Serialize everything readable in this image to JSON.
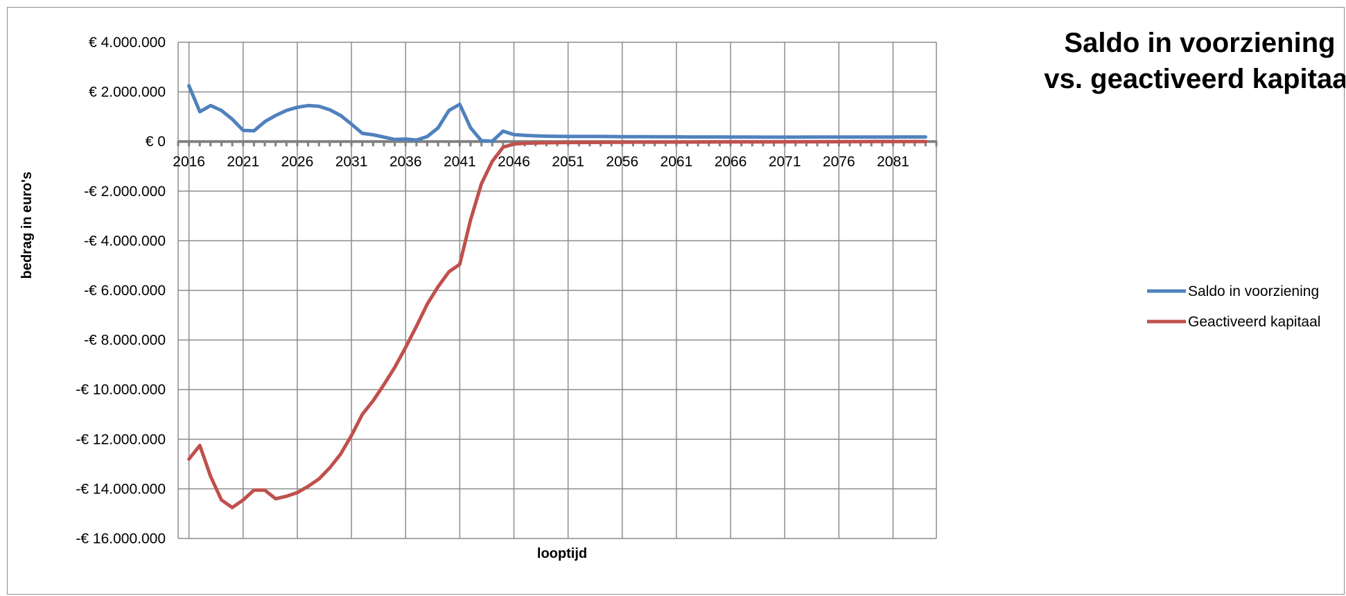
{
  "chart_data": {
    "type": "line",
    "title_lines": [
      "Saldo in voorziening",
      "vs. geactiveerd kapitaal"
    ],
    "xlabel": "looptijd",
    "ylabel": "bedrag in euro's",
    "ylim": [
      -16000000,
      4000000
    ],
    "ytick_values": [
      4000000,
      2000000,
      0,
      -2000000,
      -4000000,
      -6000000,
      -8000000,
      -10000000,
      -12000000,
      -14000000,
      -16000000
    ],
    "ytick_labels": [
      "€ 4.000.000",
      "€ 2.000.000",
      "€ 0",
      "-€ 2.000.000",
      "-€ 4.000.000",
      "-€ 6.000.000",
      "-€ 8.000.000",
      "-€ 10.000.000",
      "-€ 12.000.000",
      "-€ 14.000.000",
      "-€ 16.000.000"
    ],
    "xlim": [
      2015,
      2085
    ],
    "xtick_labels": [
      "2016",
      "2021",
      "2026",
      "2031",
      "2036",
      "2041",
      "2046",
      "2051",
      "2056",
      "2061",
      "2066",
      "2071",
      "2076",
      "2081"
    ],
    "x": [
      2016,
      2017,
      2018,
      2019,
      2020,
      2021,
      2022,
      2023,
      2024,
      2025,
      2026,
      2027,
      2028,
      2029,
      2030,
      2031,
      2032,
      2033,
      2034,
      2035,
      2036,
      2037,
      2038,
      2039,
      2040,
      2041,
      2042,
      2043,
      2044,
      2045,
      2046,
      2047,
      2048,
      2049,
      2050,
      2051,
      2052,
      2053,
      2054,
      2055,
      2056,
      2057,
      2058,
      2059,
      2060,
      2061,
      2062,
      2063,
      2064,
      2065,
      2066,
      2067,
      2068,
      2069,
      2070,
      2071,
      2072,
      2073,
      2074,
      2075,
      2076,
      2077,
      2078,
      2079,
      2080,
      2081,
      2082,
      2083,
      2084
    ],
    "series": [
      {
        "name": "Saldo in voorziening",
        "color": "#4f81bd",
        "values": [
          2250000,
          1200000,
          1450000,
          1250000,
          900000,
          450000,
          430000,
          800000,
          1050000,
          1250000,
          1380000,
          1450000,
          1420000,
          1280000,
          1050000,
          700000,
          330000,
          270000,
          180000,
          80000,
          100000,
          60000,
          200000,
          550000,
          1250000,
          1500000,
          550000,
          30000,
          10000,
          420000,
          280000,
          250000,
          230000,
          215000,
          210000,
          205000,
          205000,
          205000,
          205000,
          200000,
          195000,
          195000,
          195000,
          190000,
          190000,
          190000,
          185000,
          185000,
          185000,
          185000,
          180000,
          180000,
          180000,
          175000,
          175000,
          175000,
          175000,
          180000,
          180000,
          180000,
          180000,
          180000,
          180000,
          180000,
          180000,
          180000,
          185000,
          185000,
          185000
        ]
      },
      {
        "name": "Geactiveerd kapitaal",
        "color": "#c0504d",
        "values": [
          -12800000,
          -12250000,
          -13500000,
          -14450000,
          -14750000,
          -14450000,
          -14050000,
          -14050000,
          -14400000,
          -14300000,
          -14150000,
          -13900000,
          -13600000,
          -13150000,
          -12600000,
          -11850000,
          -11000000,
          -10450000,
          -9800000,
          -9100000,
          -8300000,
          -7450000,
          -6550000,
          -5850000,
          -5250000,
          -4950000,
          -3150000,
          -1700000,
          -800000,
          -230000,
          -100000,
          -70000,
          -60000,
          -50000,
          -45000,
          -40000,
          -38000,
          -35000,
          -33000,
          -30000,
          -28000,
          -26000,
          -25000,
          -24000,
          -23000,
          -22000,
          -21000,
          -20000,
          -19000,
          -18000,
          -17000,
          -16000,
          -15000,
          -14000,
          -13000,
          -12000,
          -11000,
          -10000,
          -9000,
          -8000,
          -7000,
          -6000,
          -5000,
          -4000,
          -3000,
          -2000,
          -1500,
          -1000,
          -500
        ]
      }
    ],
    "legend_position": "right",
    "grid": true
  }
}
